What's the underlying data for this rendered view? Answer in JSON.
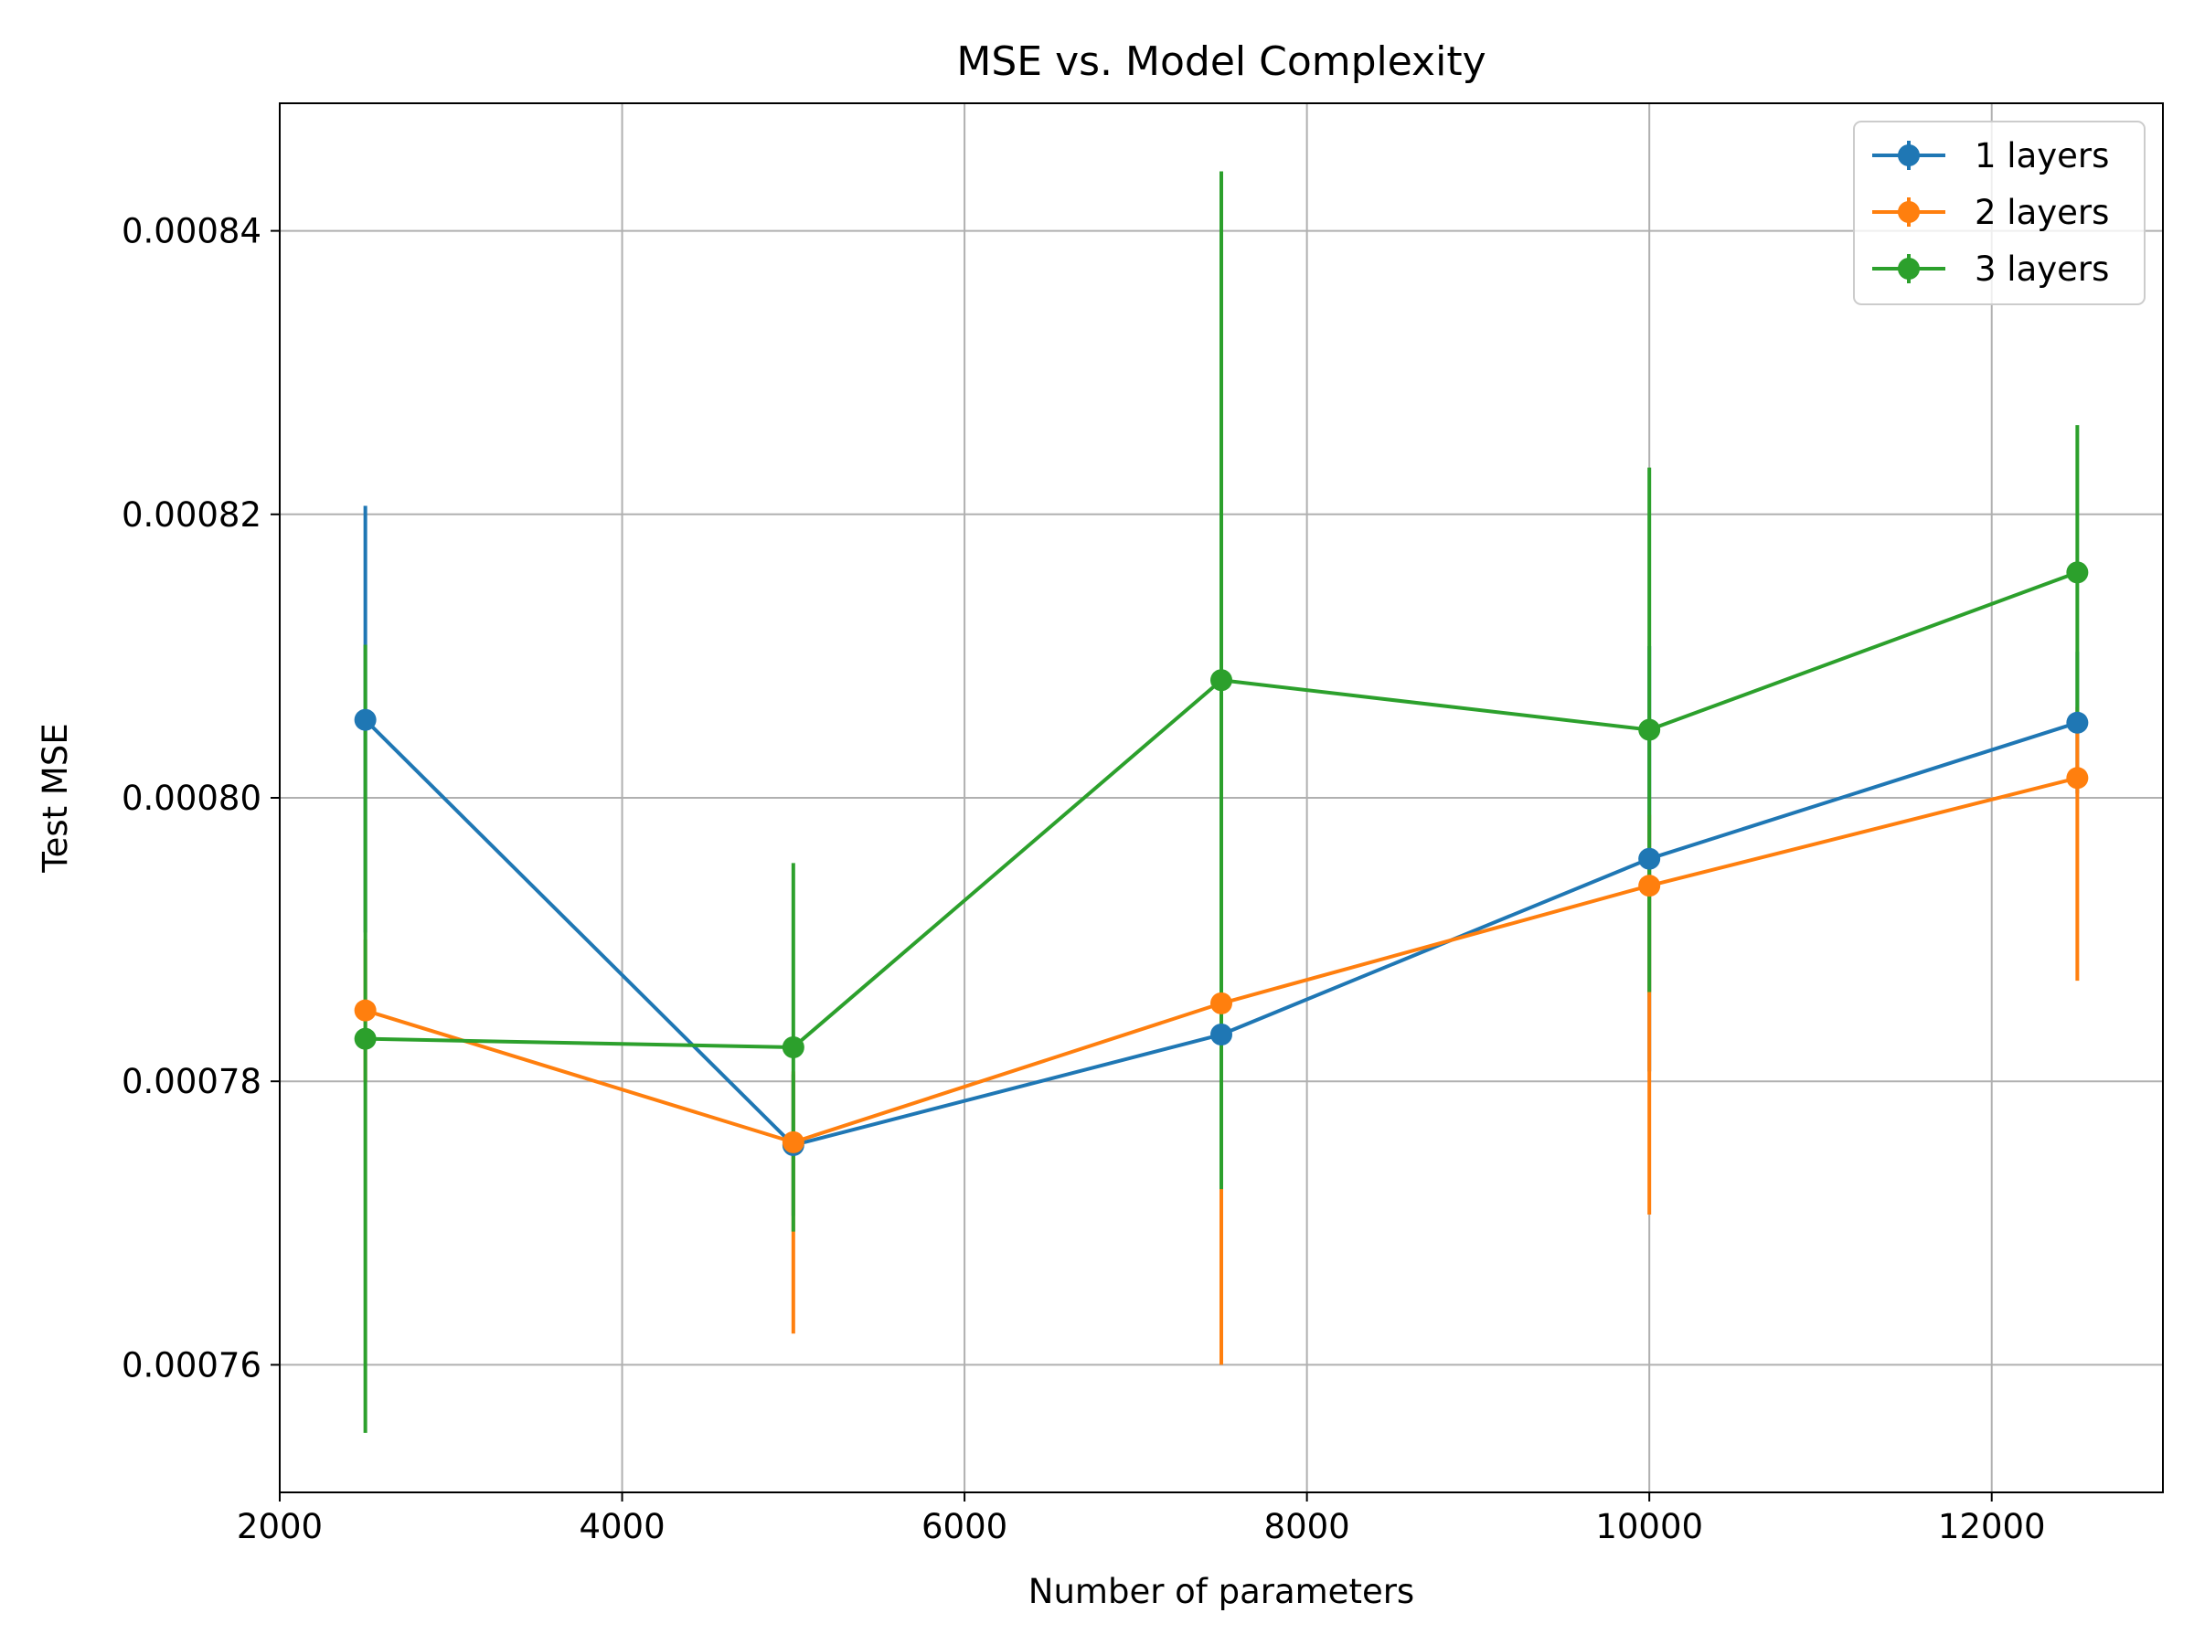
{
  "chart_data": {
    "type": "line",
    "title": "MSE vs. Model Complexity",
    "xlabel": "Number of parameters",
    "ylabel": "Test MSE",
    "xlim": [
      2000,
      13000
    ],
    "ylim": [
      0.000751,
      0.000849
    ],
    "xticks": [
      2000,
      4000,
      6000,
      8000,
      10000,
      12000
    ],
    "xtick_labels": [
      "2000",
      "4000",
      "6000",
      "8000",
      "10000",
      "12000"
    ],
    "yticks": [
      0.00076,
      0.00078,
      0.0008,
      0.00082,
      0.00084
    ],
    "ytick_labels": [
      "0.00076",
      "0.00078",
      "0.00080",
      "0.00082",
      "0.00084"
    ],
    "grid": true,
    "legend_position": "top-right",
    "x": [
      2500,
      5000,
      7500,
      10000,
      12500
    ],
    "series": [
      {
        "name": "1 layers",
        "color": "#1f77b4",
        "values": [
          0.0008055,
          0.0007755,
          0.0007833,
          0.0007957,
          0.0008053
        ],
        "yerr_low": [
          0.0007905,
          0.0007705,
          0.0007783,
          0.0007807,
          0.0008003
        ],
        "yerr_high": [
          0.0008206,
          0.0007805,
          0.0007883,
          0.0008107,
          0.0008103
        ]
      },
      {
        "name": "2 layers",
        "color": "#ff7f0e",
        "values": [
          0.000785,
          0.0007757,
          0.0007855,
          0.0007938,
          0.0008014
        ],
        "yerr_low": [
          0.00078,
          0.0007622,
          0.00076,
          0.0007706,
          0.0007871
        ],
        "yerr_high": [
          0.00079,
          0.0007807,
          0.0007905,
          0.0007988,
          0.0008064
        ]
      },
      {
        "name": "3 layers",
        "color": "#2ca02c",
        "values": [
          0.000783,
          0.0007824,
          0.0008083,
          0.0008048,
          0.0008159
        ],
        "yerr_low": [
          0.0007552,
          0.0007694,
          0.0007724,
          0.0007863,
          0.0008055
        ],
        "yerr_high": [
          0.0008108,
          0.0007954,
          0.0008442,
          0.0008233,
          0.0008263
        ]
      }
    ]
  }
}
